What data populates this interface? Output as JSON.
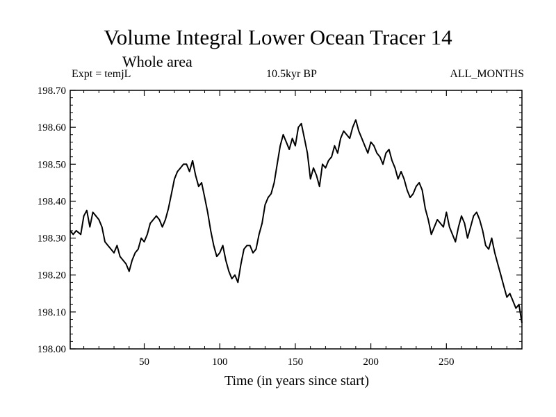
{
  "chart_data": {
    "type": "line",
    "title": "Volume Integral Lower Ocean Tracer 14",
    "subtitle": "Whole area",
    "header_left": "Expt = temjL",
    "header_center": "10.5kyr BP",
    "header_right": "ALL_MONTHS",
    "xlabel": "Time (in years since start)",
    "ylabel": "",
    "xlim": [
      1,
      300
    ],
    "ylim": [
      198.0,
      198.7
    ],
    "x_ticks": [
      50,
      100,
      150,
      200,
      250
    ],
    "x_tick_labels": [
      "50",
      "100",
      "150",
      "200",
      "250"
    ],
    "y_ticks": [
      198.0,
      198.1,
      198.2,
      198.3,
      198.4,
      198.5,
      198.6,
      198.7
    ],
    "y_tick_labels": [
      "198.00",
      "198.10",
      "198.20",
      "198.30",
      "198.40",
      "198.50",
      "198.60",
      "198.70"
    ],
    "grid": false,
    "series": [
      {
        "name": "Tracer 14",
        "color": "#000000",
        "x": [
          1,
          3,
          5,
          8,
          10,
          12,
          14,
          16,
          18,
          20,
          22,
          24,
          26,
          28,
          30,
          32,
          34,
          36,
          38,
          40,
          42,
          44,
          46,
          48,
          50,
          52,
          54,
          56,
          58,
          60,
          62,
          64,
          66,
          68,
          70,
          72,
          74,
          76,
          78,
          80,
          82,
          84,
          86,
          88,
          90,
          92,
          94,
          96,
          98,
          100,
          102,
          104,
          106,
          108,
          110,
          112,
          114,
          116,
          118,
          120,
          122,
          124,
          126,
          128,
          130,
          132,
          134,
          136,
          138,
          140,
          142,
          144,
          146,
          148,
          150,
          152,
          154,
          156,
          158,
          160,
          162,
          164,
          166,
          168,
          170,
          172,
          174,
          176,
          178,
          180,
          182,
          184,
          186,
          188,
          190,
          192,
          194,
          196,
          198,
          200,
          202,
          204,
          206,
          208,
          210,
          212,
          214,
          216,
          218,
          220,
          222,
          224,
          226,
          228,
          230,
          232,
          234,
          236,
          238,
          240,
          242,
          244,
          246,
          248,
          250,
          252,
          254,
          256,
          258,
          260,
          262,
          264,
          266,
          268,
          270,
          272,
          274,
          276,
          278,
          280,
          282,
          284,
          286,
          288,
          290,
          292,
          294,
          296,
          298,
          300
        ],
        "values": [
          198.32,
          198.31,
          198.32,
          198.31,
          198.36,
          198.375,
          198.33,
          198.37,
          198.36,
          198.35,
          198.33,
          198.29,
          198.28,
          198.27,
          198.26,
          198.28,
          198.25,
          198.24,
          198.23,
          198.21,
          198.24,
          198.26,
          198.27,
          198.3,
          198.29,
          198.31,
          198.34,
          198.35,
          198.36,
          198.35,
          198.33,
          198.35,
          198.38,
          198.42,
          198.46,
          198.48,
          198.49,
          198.5,
          198.5,
          198.48,
          198.51,
          198.47,
          198.44,
          198.45,
          198.41,
          198.37,
          198.32,
          198.28,
          198.25,
          198.26,
          198.28,
          198.24,
          198.21,
          198.19,
          198.2,
          198.18,
          198.23,
          198.27,
          198.28,
          198.28,
          198.26,
          198.27,
          198.31,
          198.34,
          198.39,
          198.41,
          198.42,
          198.45,
          198.5,
          198.55,
          198.58,
          198.56,
          198.54,
          198.57,
          198.55,
          198.6,
          198.61,
          198.57,
          198.53,
          198.46,
          198.49,
          198.47,
          198.44,
          198.5,
          198.49,
          198.51,
          198.52,
          198.55,
          198.53,
          198.57,
          198.59,
          198.58,
          198.57,
          198.6,
          198.62,
          198.59,
          198.57,
          198.55,
          198.53,
          198.56,
          198.55,
          198.53,
          198.52,
          198.5,
          198.53,
          198.54,
          198.51,
          198.49,
          198.46,
          198.48,
          198.46,
          198.43,
          198.41,
          198.42,
          198.44,
          198.45,
          198.43,
          198.38,
          198.35,
          198.31,
          198.33,
          198.35,
          198.34,
          198.33,
          198.37,
          198.33,
          198.31,
          198.29,
          198.33,
          198.36,
          198.34,
          198.3,
          198.33,
          198.36,
          198.37,
          198.35,
          198.32,
          198.28,
          198.27,
          198.3,
          198.26,
          198.23,
          198.2,
          198.17,
          198.14,
          198.15,
          198.13,
          198.11,
          198.12,
          198.07
        ]
      }
    ]
  }
}
